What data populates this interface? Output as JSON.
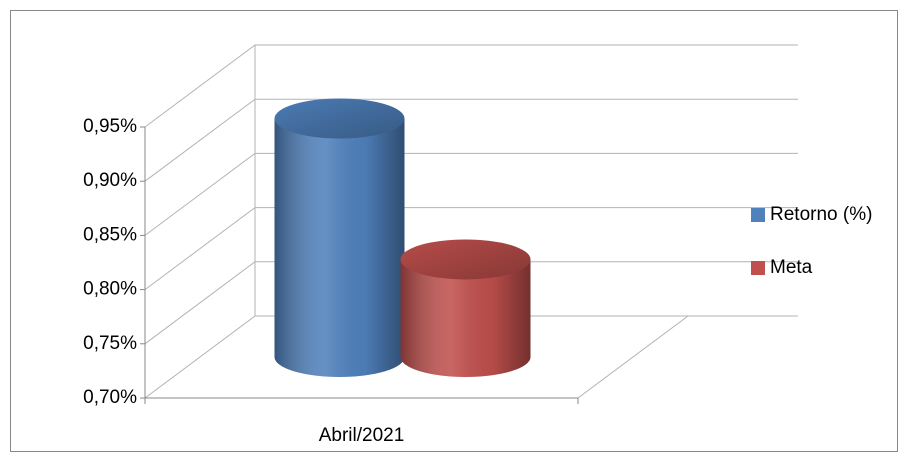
{
  "chart_data": {
    "type": "cylinder3d",
    "categories": [
      "Abril/2021"
    ],
    "series": [
      {
        "name": "Retorno (%)",
        "color": "#4f81bd",
        "values": [
          0.92
        ]
      },
      {
        "name": "Meta",
        "color": "#c0504d",
        "values": [
          0.79
        ]
      }
    ],
    "ylim": [
      0.7,
      0.95
    ],
    "yticks": [
      {
        "value": 0.7,
        "label": "0,70%"
      },
      {
        "value": 0.75,
        "label": "0,75%"
      },
      {
        "value": 0.8,
        "label": "0,80%"
      },
      {
        "value": 0.85,
        "label": "0,85%"
      },
      {
        "value": 0.9,
        "label": "0,90%"
      },
      {
        "value": 0.95,
        "label": "0,95%"
      }
    ],
    "grid": true,
    "legend": "right"
  }
}
